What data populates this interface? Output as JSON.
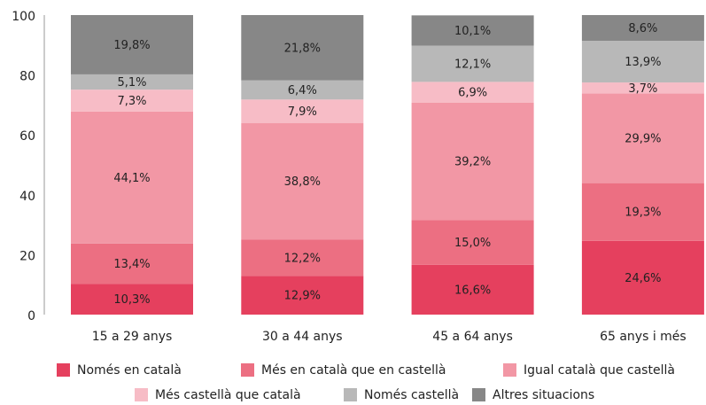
{
  "chart_data": {
    "type": "stacked_bar",
    "categories": [
      "15 a 29 anys",
      "30 a 44 anys",
      "45 a 64 anys",
      "65 anys i més"
    ],
    "series": [
      {
        "name": "Només en català",
        "color": "#e5405e",
        "values": [
          10.3,
          12.9,
          16.6,
          24.6
        ],
        "value_labels": [
          "10,3%",
          "12,9%",
          "16,6%",
          "24,6%"
        ]
      },
      {
        "name": "Més en català que en castellà",
        "color": "#ec6f82",
        "values": [
          13.4,
          12.2,
          15.0,
          19.3
        ],
        "value_labels": [
          "13,4%",
          "12,2%",
          "15,0%",
          "19,3%"
        ]
      },
      {
        "name": "Igual català que castellà",
        "color": "#f297a5",
        "values": [
          44.1,
          38.8,
          39.2,
          29.9
        ],
        "value_labels": [
          "44,1%",
          "38,8%",
          "39,2%",
          "29,9%"
        ]
      },
      {
        "name": "Més castellà que català",
        "color": "#f7bcc6",
        "values": [
          7.3,
          7.9,
          6.9,
          3.7
        ],
        "value_labels": [
          "7,3%",
          "7,9%",
          "6,9%",
          "3,7%"
        ]
      },
      {
        "name": "Només castellà",
        "color": "#b8b8b8",
        "values": [
          5.1,
          6.4,
          12.1,
          13.9
        ],
        "value_labels": [
          "5,1%",
          "6,4%",
          "12,1%",
          "13,9%"
        ]
      },
      {
        "name": "Altres situacions",
        "color": "#878787",
        "values": [
          19.8,
          21.8,
          10.1,
          8.6
        ],
        "value_labels": [
          "19,8%",
          "21,8%",
          "10,1%",
          "8,6%"
        ]
      }
    ],
    "ylim": [
      0,
      100
    ],
    "yticks": [
      0,
      20,
      40,
      60,
      80,
      100
    ],
    "grid": false,
    "legend": "bottom"
  }
}
